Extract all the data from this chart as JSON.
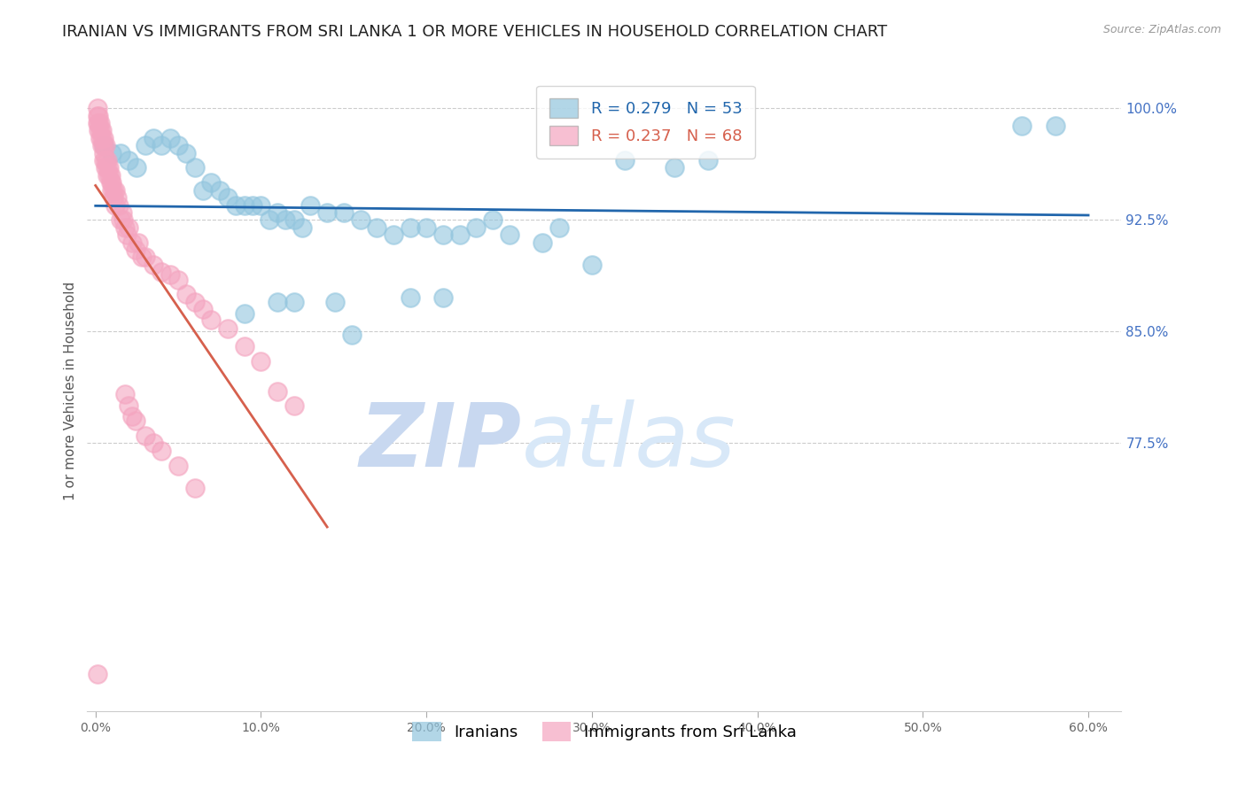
{
  "title": "IRANIAN VS IMMIGRANTS FROM SRI LANKA 1 OR MORE VEHICLES IN HOUSEHOLD CORRELATION CHART",
  "source_text": "Source: ZipAtlas.com",
  "ylabel": "1 or more Vehicles in Household",
  "xlim": [
    -0.005,
    0.62
  ],
  "ylim": [
    0.595,
    1.025
  ],
  "yticks": [
    0.775,
    0.85,
    0.925,
    1.0
  ],
  "ytick_labels": [
    "77.5%",
    "85.0%",
    "92.5%",
    "100.0%"
  ],
  "xtick_labels": [
    "0.0%",
    "10.0%",
    "20.0%",
    "30.0%",
    "40.0%",
    "50.0%",
    "60.0%"
  ],
  "xticks": [
    0.0,
    0.1,
    0.2,
    0.3,
    0.4,
    0.5,
    0.6
  ],
  "R_blue": 0.279,
  "N_blue": 53,
  "R_pink": 0.237,
  "N_pink": 68,
  "blue_color": "#92c5de",
  "pink_color": "#f4a5c0",
  "trendline_blue_color": "#2166ac",
  "trendline_pink_color": "#d6604d",
  "watermark_zip": "ZIP",
  "watermark_atlas": "atlas",
  "watermark_color": "#d0e4f5",
  "background_color": "#ffffff",
  "title_fontsize": 13,
  "axis_label_fontsize": 11,
  "tick_fontsize": 10,
  "legend_fontsize": 13,
  "blue_points_x": [
    0.005,
    0.01,
    0.015,
    0.02,
    0.025,
    0.03,
    0.035,
    0.04,
    0.045,
    0.05,
    0.055,
    0.06,
    0.065,
    0.07,
    0.075,
    0.08,
    0.085,
    0.09,
    0.095,
    0.1,
    0.105,
    0.11,
    0.115,
    0.12,
    0.125,
    0.13,
    0.14,
    0.15,
    0.16,
    0.17,
    0.18,
    0.19,
    0.2,
    0.21,
    0.22,
    0.23,
    0.24,
    0.25,
    0.27,
    0.28,
    0.3,
    0.32,
    0.35,
    0.37,
    0.155,
    0.09,
    0.11,
    0.12,
    0.145,
    0.19,
    0.21,
    0.56,
    0.58
  ],
  "blue_points_y": [
    0.975,
    0.97,
    0.97,
    0.965,
    0.96,
    0.975,
    0.98,
    0.975,
    0.98,
    0.975,
    0.97,
    0.96,
    0.945,
    0.95,
    0.945,
    0.94,
    0.935,
    0.935,
    0.935,
    0.935,
    0.925,
    0.93,
    0.925,
    0.925,
    0.92,
    0.935,
    0.93,
    0.93,
    0.925,
    0.92,
    0.915,
    0.92,
    0.92,
    0.915,
    0.915,
    0.92,
    0.925,
    0.915,
    0.91,
    0.92,
    0.895,
    0.965,
    0.96,
    0.965,
    0.848,
    0.862,
    0.87,
    0.87,
    0.87,
    0.873,
    0.873,
    0.988,
    0.988
  ],
  "pink_points_x": [
    0.001,
    0.001,
    0.001,
    0.002,
    0.002,
    0.002,
    0.003,
    0.003,
    0.003,
    0.004,
    0.004,
    0.004,
    0.005,
    0.005,
    0.005,
    0.005,
    0.006,
    0.006,
    0.006,
    0.007,
    0.007,
    0.007,
    0.008,
    0.008,
    0.009,
    0.009,
    0.01,
    0.01,
    0.011,
    0.011,
    0.012,
    0.012,
    0.013,
    0.014,
    0.015,
    0.016,
    0.017,
    0.018,
    0.019,
    0.02,
    0.022,
    0.024,
    0.026,
    0.028,
    0.03,
    0.035,
    0.04,
    0.045,
    0.05,
    0.055,
    0.06,
    0.065,
    0.07,
    0.08,
    0.09,
    0.1,
    0.11,
    0.12,
    0.018,
    0.02,
    0.022,
    0.024,
    0.03,
    0.035,
    0.04,
    0.05,
    0.06,
    0.001
  ],
  "pink_points_y": [
    1.0,
    0.995,
    0.99,
    0.995,
    0.99,
    0.985,
    0.99,
    0.985,
    0.98,
    0.985,
    0.98,
    0.975,
    0.98,
    0.975,
    0.97,
    0.965,
    0.975,
    0.965,
    0.96,
    0.965,
    0.96,
    0.955,
    0.96,
    0.955,
    0.955,
    0.95,
    0.95,
    0.945,
    0.945,
    0.94,
    0.945,
    0.935,
    0.94,
    0.935,
    0.925,
    0.93,
    0.925,
    0.92,
    0.915,
    0.92,
    0.91,
    0.905,
    0.91,
    0.9,
    0.9,
    0.895,
    0.89,
    0.888,
    0.885,
    0.875,
    0.87,
    0.865,
    0.858,
    0.852,
    0.84,
    0.83,
    0.81,
    0.8,
    0.808,
    0.8,
    0.793,
    0.79,
    0.78,
    0.775,
    0.77,
    0.76,
    0.745,
    0.62
  ]
}
